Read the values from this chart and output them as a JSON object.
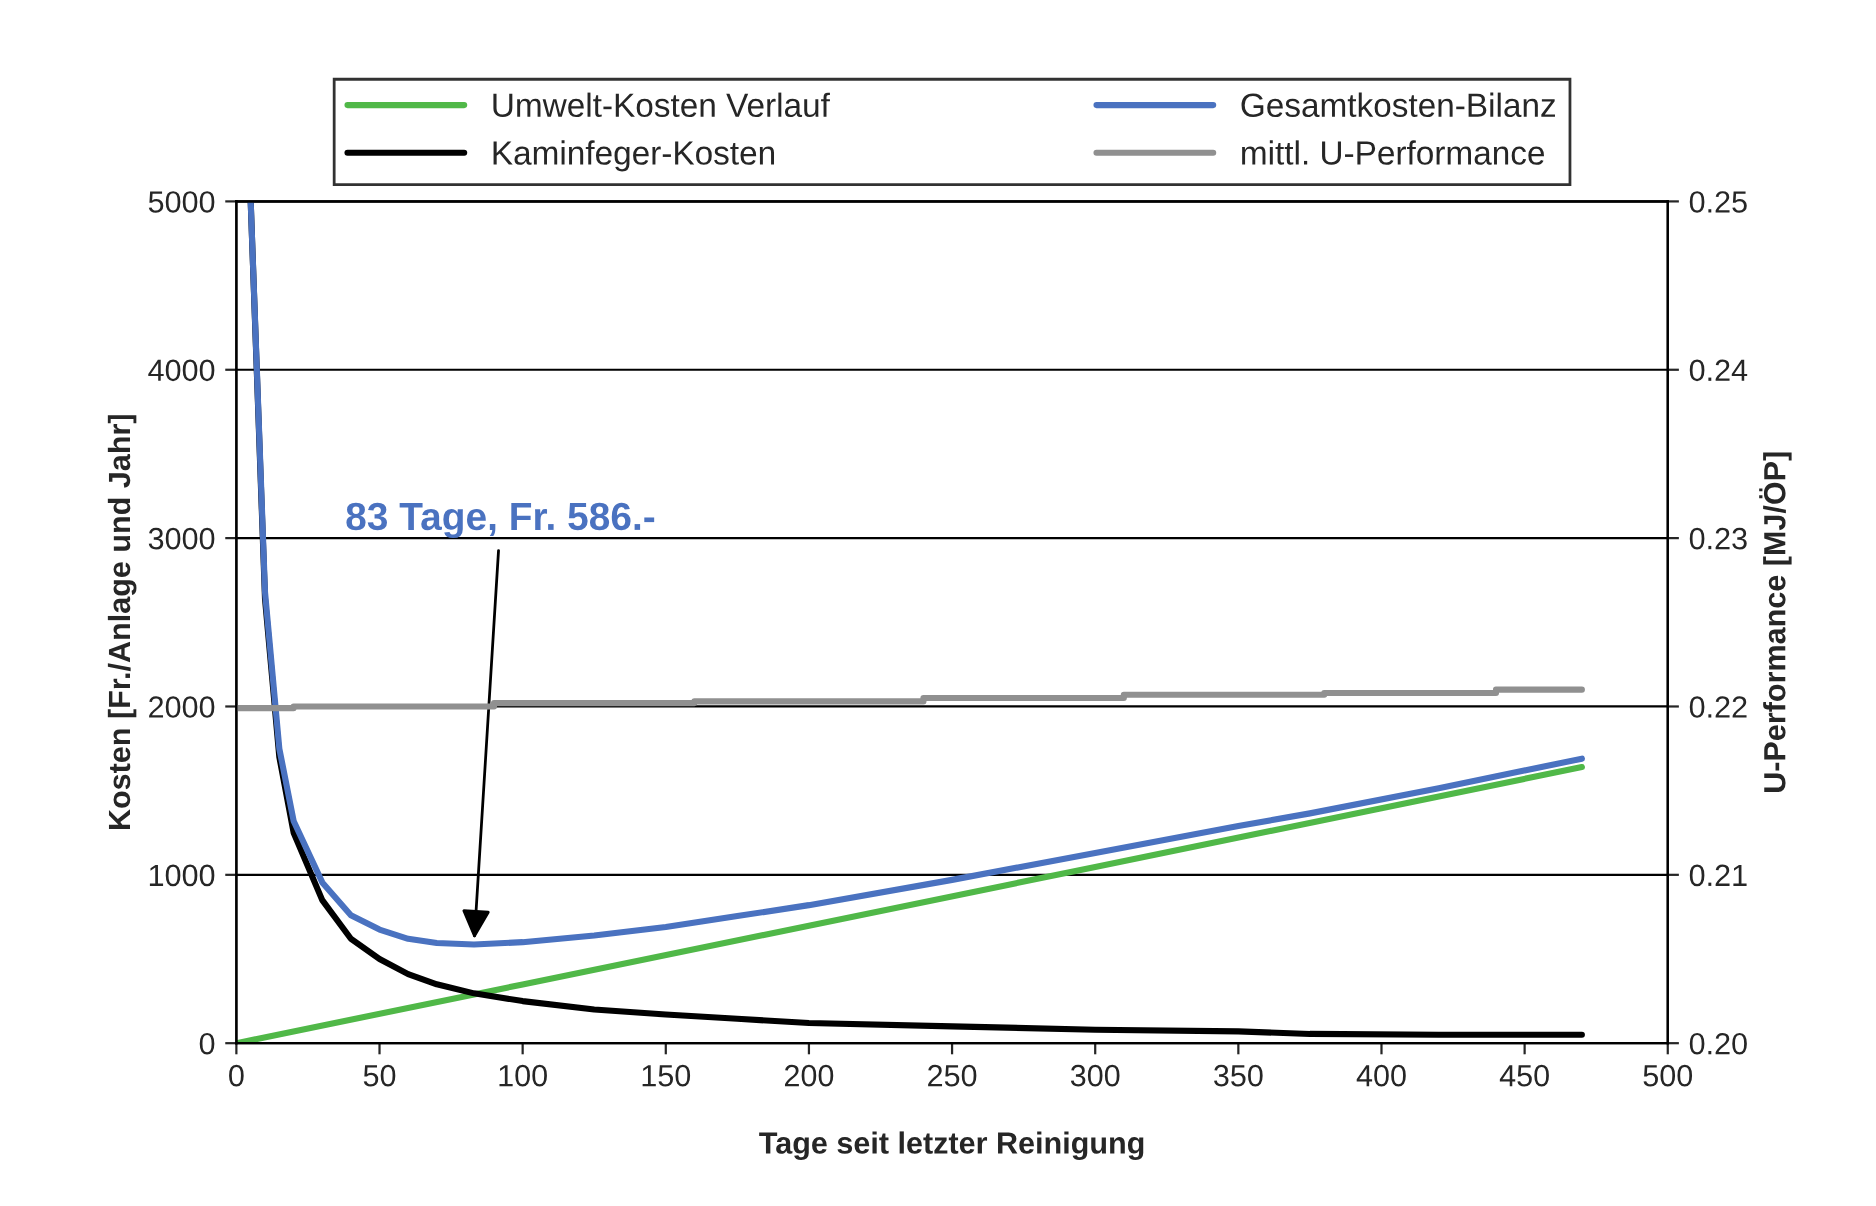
{
  "chart_data": {
    "type": "line",
    "xlabel": "Tage seit letzter Reinigung",
    "ylabel": "Kosten [Fr./Anlage und Jahr]",
    "y2label": "U-Performance [MJ/ÖP]",
    "xlim": [
      0,
      500
    ],
    "xticks": [
      0,
      50,
      100,
      150,
      200,
      250,
      300,
      350,
      400,
      450,
      500
    ],
    "ylim": [
      0,
      5000
    ],
    "yticks": [
      0,
      1000,
      2000,
      3000,
      4000,
      5000
    ],
    "y2lim": [
      0.2,
      0.25
    ],
    "y2ticks": [
      {
        "value": 0.2,
        "label": "0.20"
      },
      0.21,
      0.22,
      0.23,
      0.24,
      {
        "value": 0.25,
        "label": "0.25"
      }
    ],
    "grid": "y",
    "legend": "top",
    "series": [
      {
        "name": "Umwelt-Kosten Verlauf",
        "color": "#50b848",
        "x": [
          0,
          100,
          200,
          300,
          400,
          470
        ],
        "values": [
          0,
          349,
          698,
          1047,
          1396,
          1640
        ]
      },
      {
        "name": "Kaminfeger-Kosten",
        "color": "#000000",
        "x": [
          5,
          10,
          15,
          20,
          30,
          40,
          50,
          60,
          70,
          83,
          100,
          125,
          150,
          175,
          200,
          250,
          300,
          350,
          375,
          420,
          470
        ],
        "values": [
          5000,
          2640,
          1700,
          1250,
          850,
          620,
          500,
          410,
          350,
          296,
          250,
          200,
          170,
          145,
          120,
          100,
          80,
          70,
          55,
          50,
          50
        ]
      },
      {
        "name": "Gesamtkosten-Bilanz",
        "color": "#4a72c0",
        "x": [
          5,
          10,
          15,
          20,
          30,
          40,
          50,
          60,
          70,
          83,
          100,
          125,
          150,
          175,
          200,
          250,
          300,
          350,
          375,
          420,
          470
        ],
        "values": [
          5000,
          2680,
          1750,
          1320,
          955,
          760,
          675,
          620,
          595,
          586,
          600,
          640,
          690,
          755,
          820,
          970,
          1130,
          1290,
          1365,
          1515,
          1690
        ]
      },
      {
        "name": "mittl. U-Performance",
        "color": "#909090",
        "axis": "y2",
        "x": [
          0,
          20,
          20,
          90,
          90,
          160,
          160,
          240,
          240,
          310,
          310,
          380,
          380,
          440,
          440,
          470
        ],
        "values": [
          0.2199,
          0.2199,
          0.22,
          0.22,
          0.2202,
          0.2202,
          0.2203,
          0.2203,
          0.2205,
          0.2205,
          0.2207,
          0.2207,
          0.2208,
          0.2208,
          0.221,
          0.221
        ]
      }
    ],
    "annotations": [
      {
        "text": "83 Tage, Fr. 586.-",
        "x": 83,
        "y": 586
      }
    ]
  }
}
